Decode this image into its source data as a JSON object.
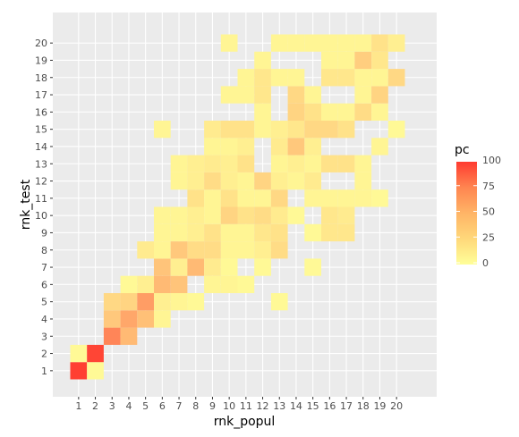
{
  "chart_data": {
    "type": "heatmap",
    "xlabel": "rnk_popul",
    "ylabel": "rnk_test",
    "x_categories": [
      "1",
      "2",
      "3",
      "4",
      "5",
      "6",
      "7",
      "8",
      "9",
      "10",
      "11",
      "12",
      "13",
      "14",
      "15",
      "16",
      "17",
      "18",
      "19",
      "20"
    ],
    "y_categories": [
      "1",
      "2",
      "3",
      "4",
      "5",
      "6",
      "7",
      "8",
      "9",
      "10",
      "11",
      "12",
      "13",
      "14",
      "15",
      "16",
      "17",
      "18",
      "19",
      "20"
    ],
    "legend": {
      "title": "pc",
      "ticks": [
        "0",
        "25",
        "50",
        "75",
        "100"
      ],
      "min": 0,
      "max": 100,
      "low_color": "#FFFF99",
      "high_color": "#FF3B30"
    },
    "panel_background": "#EBEBEB",
    "grid": true,
    "cells": [
      {
        "x": 1,
        "y": 1,
        "v": 98
      },
      {
        "x": 2,
        "y": 1,
        "v": 3
      },
      {
        "x": 1,
        "y": 2,
        "v": 3
      },
      {
        "x": 2,
        "y": 2,
        "v": 95
      },
      {
        "x": 3,
        "y": 3,
        "v": 62
      },
      {
        "x": 4,
        "y": 3,
        "v": 35
      },
      {
        "x": 3,
        "y": 4,
        "v": 28
      },
      {
        "x": 4,
        "y": 4,
        "v": 45
      },
      {
        "x": 5,
        "y": 4,
        "v": 32
      },
      {
        "x": 6,
        "y": 4,
        "v": 5
      },
      {
        "x": 3,
        "y": 5,
        "v": 20
      },
      {
        "x": 4,
        "y": 5,
        "v": 22
      },
      {
        "x": 5,
        "y": 5,
        "v": 50
      },
      {
        "x": 6,
        "y": 5,
        "v": 8
      },
      {
        "x": 7,
        "y": 5,
        "v": 5
      },
      {
        "x": 8,
        "y": 5,
        "v": 3
      },
      {
        "x": 13,
        "y": 5,
        "v": 3
      },
      {
        "x": 4,
        "y": 6,
        "v": 3
      },
      {
        "x": 5,
        "y": 6,
        "v": 8
      },
      {
        "x": 6,
        "y": 6,
        "v": 35
      },
      {
        "x": 7,
        "y": 6,
        "v": 30
      },
      {
        "x": 9,
        "y": 6,
        "v": 5
      },
      {
        "x": 10,
        "y": 6,
        "v": 5
      },
      {
        "x": 11,
        "y": 6,
        "v": 3
      },
      {
        "x": 6,
        "y": 7,
        "v": 30
      },
      {
        "x": 7,
        "y": 7,
        "v": 8
      },
      {
        "x": 8,
        "y": 7,
        "v": 35
      },
      {
        "x": 9,
        "y": 7,
        "v": 10
      },
      {
        "x": 10,
        "y": 7,
        "v": 3
      },
      {
        "x": 12,
        "y": 7,
        "v": 3
      },
      {
        "x": 15,
        "y": 7,
        "v": 3
      },
      {
        "x": 5,
        "y": 8,
        "v": 10
      },
      {
        "x": 6,
        "y": 8,
        "v": 5
      },
      {
        "x": 7,
        "y": 8,
        "v": 28
      },
      {
        "x": 8,
        "y": 8,
        "v": 18
      },
      {
        "x": 9,
        "y": 8,
        "v": 18
      },
      {
        "x": 10,
        "y": 8,
        "v": 5
      },
      {
        "x": 11,
        "y": 8,
        "v": 5
      },
      {
        "x": 12,
        "y": 8,
        "v": 8
      },
      {
        "x": 13,
        "y": 8,
        "v": 18
      },
      {
        "x": 6,
        "y": 9,
        "v": 5
      },
      {
        "x": 7,
        "y": 9,
        "v": 5
      },
      {
        "x": 8,
        "y": 9,
        "v": 8
      },
      {
        "x": 9,
        "y": 9,
        "v": 15
      },
      {
        "x": 10,
        "y": 9,
        "v": 5
      },
      {
        "x": 11,
        "y": 9,
        "v": 5
      },
      {
        "x": 12,
        "y": 9,
        "v": 12
      },
      {
        "x": 13,
        "y": 9,
        "v": 15
      },
      {
        "x": 15,
        "y": 9,
        "v": 3
      },
      {
        "x": 16,
        "y": 9,
        "v": 12
      },
      {
        "x": 17,
        "y": 9,
        "v": 12
      },
      {
        "x": 6,
        "y": 10,
        "v": 5
      },
      {
        "x": 7,
        "y": 10,
        "v": 5
      },
      {
        "x": 8,
        "y": 10,
        "v": 8
      },
      {
        "x": 9,
        "y": 10,
        "v": 5
      },
      {
        "x": 10,
        "y": 10,
        "v": 22
      },
      {
        "x": 11,
        "y": 10,
        "v": 15
      },
      {
        "x": 12,
        "y": 10,
        "v": 18
      },
      {
        "x": 13,
        "y": 10,
        "v": 10
      },
      {
        "x": 14,
        "y": 10,
        "v": 3
      },
      {
        "x": 16,
        "y": 10,
        "v": 12
      },
      {
        "x": 17,
        "y": 10,
        "v": 10
      },
      {
        "x": 8,
        "y": 11,
        "v": 15
      },
      {
        "x": 9,
        "y": 11,
        "v": 5
      },
      {
        "x": 10,
        "y": 11,
        "v": 15
      },
      {
        "x": 11,
        "y": 11,
        "v": 5
      },
      {
        "x": 12,
        "y": 11,
        "v": 5
      },
      {
        "x": 13,
        "y": 11,
        "v": 20
      },
      {
        "x": 15,
        "y": 11,
        "v": 5
      },
      {
        "x": 16,
        "y": 11,
        "v": 5
      },
      {
        "x": 17,
        "y": 11,
        "v": 5
      },
      {
        "x": 18,
        "y": 11,
        "v": 5
      },
      {
        "x": 19,
        "y": 11,
        "v": 3
      },
      {
        "x": 7,
        "y": 12,
        "v": 5
      },
      {
        "x": 8,
        "y": 12,
        "v": 8
      },
      {
        "x": 9,
        "y": 12,
        "v": 18
      },
      {
        "x": 10,
        "y": 12,
        "v": 8
      },
      {
        "x": 11,
        "y": 12,
        "v": 5
      },
      {
        "x": 12,
        "y": 12,
        "v": 22
      },
      {
        "x": 13,
        "y": 12,
        "v": 8
      },
      {
        "x": 14,
        "y": 12,
        "v": 5
      },
      {
        "x": 15,
        "y": 12,
        "v": 10
      },
      {
        "x": 18,
        "y": 12,
        "v": 5
      },
      {
        "x": 7,
        "y": 13,
        "v": 5
      },
      {
        "x": 8,
        "y": 13,
        "v": 8
      },
      {
        "x": 9,
        "y": 13,
        "v": 10
      },
      {
        "x": 10,
        "y": 13,
        "v": 8
      },
      {
        "x": 11,
        "y": 13,
        "v": 15
      },
      {
        "x": 13,
        "y": 13,
        "v": 5
      },
      {
        "x": 14,
        "y": 13,
        "v": 8
      },
      {
        "x": 15,
        "y": 13,
        "v": 5
      },
      {
        "x": 16,
        "y": 13,
        "v": 15
      },
      {
        "x": 17,
        "y": 13,
        "v": 15
      },
      {
        "x": 18,
        "y": 13,
        "v": 5
      },
      {
        "x": 9,
        "y": 14,
        "v": 5
      },
      {
        "x": 10,
        "y": 14,
        "v": 5
      },
      {
        "x": 11,
        "y": 14,
        "v": 8
      },
      {
        "x": 13,
        "y": 14,
        "v": 10
      },
      {
        "x": 14,
        "y": 14,
        "v": 28
      },
      {
        "x": 15,
        "y": 14,
        "v": 8
      },
      {
        "x": 19,
        "y": 14,
        "v": 5
      },
      {
        "x": 6,
        "y": 15,
        "v": 5
      },
      {
        "x": 9,
        "y": 15,
        "v": 10
      },
      {
        "x": 10,
        "y": 15,
        "v": 15
      },
      {
        "x": 11,
        "y": 15,
        "v": 15
      },
      {
        "x": 12,
        "y": 15,
        "v": 5
      },
      {
        "x": 13,
        "y": 15,
        "v": 8
      },
      {
        "x": 14,
        "y": 15,
        "v": 12
      },
      {
        "x": 15,
        "y": 15,
        "v": 20
      },
      {
        "x": 16,
        "y": 15,
        "v": 20
      },
      {
        "x": 17,
        "y": 15,
        "v": 15
      },
      {
        "x": 20,
        "y": 15,
        "v": 3
      },
      {
        "x": 12,
        "y": 16,
        "v": 5
      },
      {
        "x": 14,
        "y": 16,
        "v": 22
      },
      {
        "x": 15,
        "y": 16,
        "v": 15
      },
      {
        "x": 16,
        "y": 16,
        "v": 5
      },
      {
        "x": 17,
        "y": 16,
        "v": 5
      },
      {
        "x": 18,
        "y": 16,
        "v": 18
      },
      {
        "x": 19,
        "y": 16,
        "v": 5
      },
      {
        "x": 10,
        "y": 17,
        "v": 5
      },
      {
        "x": 11,
        "y": 17,
        "v": 5
      },
      {
        "x": 12,
        "y": 17,
        "v": 12
      },
      {
        "x": 14,
        "y": 17,
        "v": 20
      },
      {
        "x": 15,
        "y": 17,
        "v": 5
      },
      {
        "x": 18,
        "y": 17,
        "v": 5
      },
      {
        "x": 19,
        "y": 17,
        "v": 22
      },
      {
        "x": 11,
        "y": 18,
        "v": 5
      },
      {
        "x": 12,
        "y": 18,
        "v": 12
      },
      {
        "x": 13,
        "y": 18,
        "v": 5
      },
      {
        "x": 14,
        "y": 18,
        "v": 5
      },
      {
        "x": 16,
        "y": 18,
        "v": 12
      },
      {
        "x": 17,
        "y": 18,
        "v": 12
      },
      {
        "x": 18,
        "y": 18,
        "v": 5
      },
      {
        "x": 19,
        "y": 18,
        "v": 5
      },
      {
        "x": 20,
        "y": 18,
        "v": 20
      },
      {
        "x": 12,
        "y": 19,
        "v": 5
      },
      {
        "x": 16,
        "y": 19,
        "v": 5
      },
      {
        "x": 17,
        "y": 19,
        "v": 5
      },
      {
        "x": 18,
        "y": 19,
        "v": 25
      },
      {
        "x": 19,
        "y": 19,
        "v": 12
      },
      {
        "x": 10,
        "y": 20,
        "v": 5
      },
      {
        "x": 13,
        "y": 20,
        "v": 5
      },
      {
        "x": 14,
        "y": 20,
        "v": 5
      },
      {
        "x": 15,
        "y": 20,
        "v": 5
      },
      {
        "x": 16,
        "y": 20,
        "v": 5
      },
      {
        "x": 17,
        "y": 20,
        "v": 5
      },
      {
        "x": 18,
        "y": 20,
        "v": 5
      },
      {
        "x": 19,
        "y": 20,
        "v": 15
      },
      {
        "x": 20,
        "y": 20,
        "v": 8
      }
    ]
  }
}
